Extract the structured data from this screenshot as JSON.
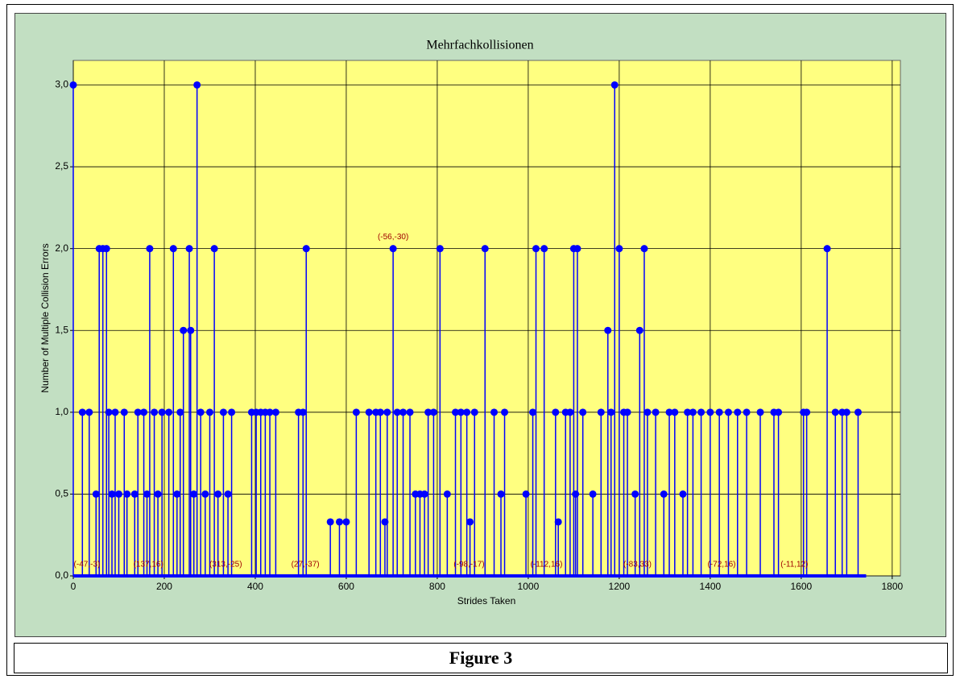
{
  "chart_data": {
    "type": "stem",
    "title": "Mehrfachkollisionen",
    "x_label": "Strides Taken",
    "y_label": "Number of Multiple Collision Errors",
    "xlim": [
      0,
      1818
    ],
    "ylim": [
      0,
      3.15
    ],
    "xticks": [
      0,
      200,
      400,
      600,
      800,
      1000,
      1200,
      1400,
      1600,
      1800
    ],
    "yticks": [
      {
        "value": 0,
        "label": "0,0"
      },
      {
        "value": 0.5,
        "label": "0,5"
      },
      {
        "value": 1,
        "label": "1,0"
      },
      {
        "value": 1.5,
        "label": "1,5"
      },
      {
        "value": 2,
        "label": "2,0"
      },
      {
        "value": 2.5,
        "label": "2,5"
      },
      {
        "value": 3,
        "label": "3,0"
      }
    ],
    "grid": true,
    "plot_background": "#ffff80",
    "color": "#0000ff",
    "x": [
      0,
      20,
      35,
      50,
      57,
      65,
      73,
      78,
      85,
      92,
      100,
      112,
      118,
      135,
      142,
      155,
      162,
      168,
      178,
      186,
      195,
      210,
      220,
      228,
      235,
      242,
      255,
      258,
      265,
      272,
      280,
      290,
      300,
      310,
      318,
      330,
      340,
      348,
      392,
      402,
      412,
      422,
      432,
      445,
      495,
      505,
      512,
      565,
      585,
      600,
      622,
      650,
      665,
      675,
      685,
      690,
      703,
      712,
      725,
      740,
      752,
      762,
      772,
      780,
      792,
      806,
      822,
      840,
      852,
      865,
      872,
      882,
      905,
      925,
      940,
      948,
      995,
      1010,
      1017,
      1035,
      1060,
      1066,
      1082,
      1092,
      1100,
      1104,
      1108,
      1120,
      1142,
      1160,
      1175,
      1182,
      1190,
      1200,
      1210,
      1218,
      1235,
      1245,
      1255,
      1262,
      1280,
      1298,
      1310,
      1322,
      1340,
      1350,
      1362,
      1380,
      1400,
      1420,
      1440,
      1460,
      1480,
      1510,
      1540,
      1550,
      1605,
      1612,
      1657,
      1675,
      1690,
      1700,
      1725
    ],
    "values": [
      3,
      1,
      1,
      0.5,
      2,
      2,
      2,
      1,
      0.5,
      1,
      0.5,
      1,
      0.5,
      0.5,
      1,
      1,
      0.5,
      2,
      1,
      0.5,
      1,
      1,
      2,
      0.5,
      1,
      1.5,
      2,
      1.5,
      0.5,
      3,
      1,
      0.5,
      1,
      2,
      0.5,
      1,
      0.5,
      1,
      1,
      1,
      1,
      1,
      1,
      1,
      1,
      1,
      2,
      0.33,
      0.33,
      0.33,
      1,
      1,
      1,
      1,
      0.33,
      1,
      2,
      1,
      1,
      1,
      0.5,
      0.5,
      0.5,
      1,
      1,
      2,
      0.5,
      1,
      1,
      1,
      0.33,
      1,
      2,
      1,
      0.5,
      1,
      0.5,
      1,
      2,
      2,
      1,
      0.33,
      1,
      1,
      2,
      0.5,
      2,
      1,
      0.5,
      1,
      1.5,
      1,
      3,
      2,
      1,
      1,
      0.5,
      1.5,
      2,
      1,
      1,
      0.5,
      1,
      1,
      0.5,
      1,
      1,
      1,
      1,
      1,
      1,
      1,
      1,
      1,
      1,
      1,
      1,
      1,
      2,
      1,
      1,
      1,
      1
    ],
    "annotations": [
      {
        "text": "(-56,-30)",
        "x": 703,
        "y": 2.07
      },
      {
        "text": "(-47,-3)",
        "x": 30,
        "y": 0.07
      },
      {
        "text": "(137,16)",
        "x": 165,
        "y": 0.07
      },
      {
        "text": "(313,-25)",
        "x": 335,
        "y": 0.07
      },
      {
        "text": "(27,-37)",
        "x": 510,
        "y": 0.07
      },
      {
        "text": "(-98,-17)",
        "x": 870,
        "y": 0.07
      },
      {
        "text": "(-112,16)",
        "x": 1040,
        "y": 0.07
      },
      {
        "text": "(-83,33)",
        "x": 1240,
        "y": 0.07
      },
      {
        "text": "(-72,16)",
        "x": 1425,
        "y": 0.07
      },
      {
        "text": "(-11,12)",
        "x": 1585,
        "y": 0.07
      }
    ]
  },
  "caption": "Figure 3"
}
